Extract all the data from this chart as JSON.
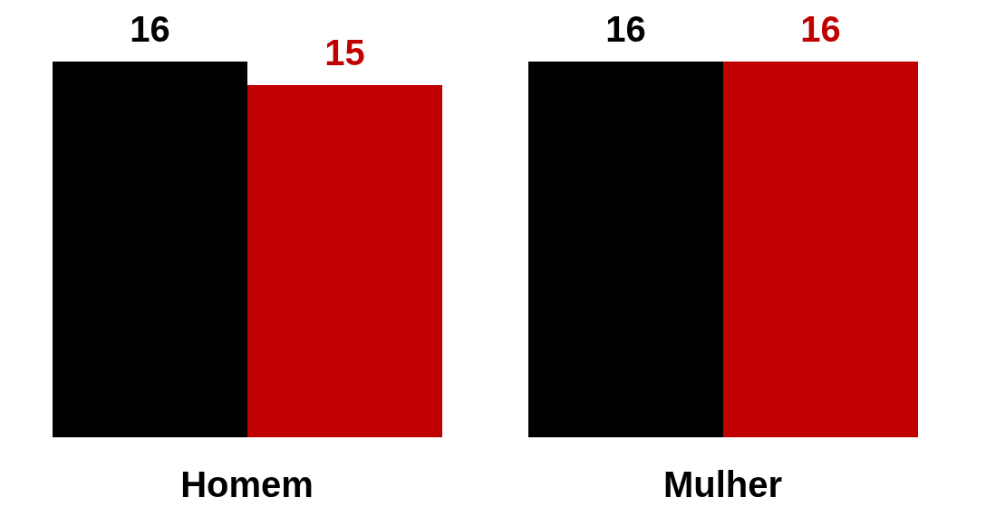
{
  "chart_data": {
    "type": "bar",
    "categories": [
      "Homem",
      "Mulher"
    ],
    "series": [
      {
        "color": "#000000",
        "values": [
          16,
          16
        ]
      },
      {
        "color": "#c00000",
        "values": [
          15,
          16
        ]
      }
    ],
    "tick_labels": "x",
    "data_labels": true,
    "grid": false,
    "legend": false
  }
}
